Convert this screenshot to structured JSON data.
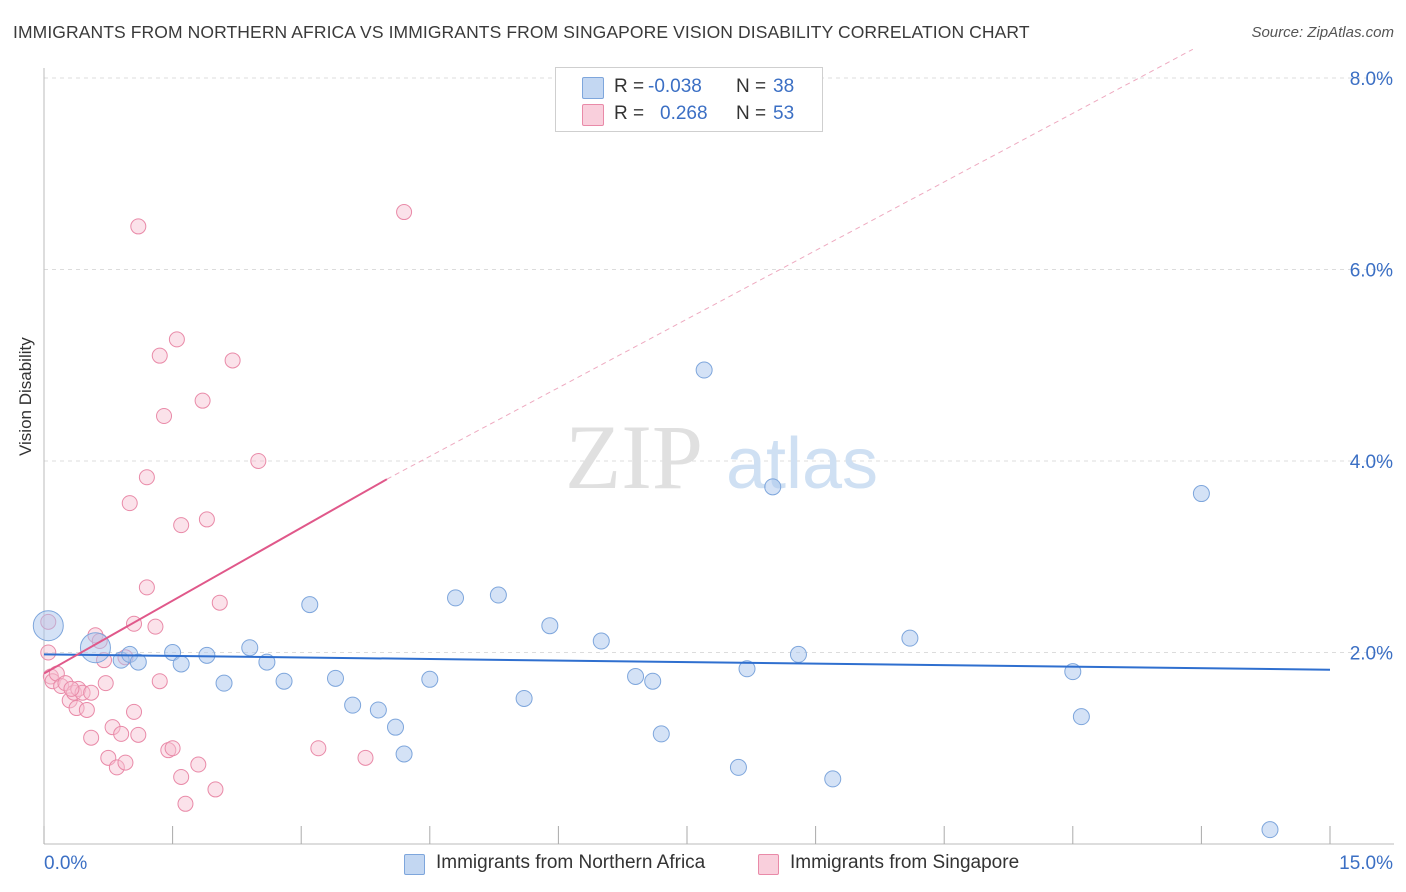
{
  "title": "IMMIGRANTS FROM NORTHERN AFRICA VS IMMIGRANTS FROM SINGAPORE VISION DISABILITY CORRELATION CHART",
  "source": "Source: ZipAtlas.com",
  "watermark": {
    "zip": "ZIP",
    "atlas": "atlas"
  },
  "colors": {
    "blue_fill": "#a9c6ee",
    "blue_stroke": "#7ea6dc",
    "blue_line": "#2f6fcf",
    "pink_fill": "#f6bfd0",
    "pink_stroke": "#e98aa8",
    "pink_line": "#e0588a",
    "axis_text": "#3b6fc4",
    "grid": "#dcdcdc"
  },
  "legend": {
    "rows": [
      {
        "r_label": "R =",
        "r_value": "-0.038",
        "n_label": "N =",
        "n_value": "38"
      },
      {
        "r_label": "R =",
        "r_value": "0.268",
        "n_label": "N =",
        "n_value": "53"
      }
    ]
  },
  "bottom_legend": {
    "series1": "Immigrants from Northern Africa",
    "series2": "Immigrants from Singapore"
  },
  "chart_data": {
    "type": "scatter",
    "title": "IMMIGRANTS FROM NORTHERN AFRICA VS IMMIGRANTS FROM SINGAPORE VISION DISABILITY CORRELATION CHART",
    "xlabel": "",
    "ylabel": "Vision Disability",
    "xlim": [
      0,
      15
    ],
    "ylim": [
      0,
      8.0
    ],
    "x_tick_labels": [
      "0.0%",
      "15.0%"
    ],
    "y_ticks": [
      2,
      4,
      6,
      8
    ],
    "y_tick_labels": [
      "2.0%",
      "4.0%",
      "6.0%",
      "8.0%"
    ],
    "grid": true,
    "series": [
      {
        "name": "Immigrants from Northern Africa",
        "R": -0.038,
        "N": 38,
        "trend": {
          "x0": 0,
          "y0": 1.98,
          "x1": 15,
          "y1": 1.82
        },
        "points": [
          {
            "x": 0.05,
            "y": 2.28,
            "big": true
          },
          {
            "x": 0.6,
            "y": 2.05,
            "big": true
          },
          {
            "x": 0.9,
            "y": 1.92
          },
          {
            "x": 1.0,
            "y": 1.98
          },
          {
            "x": 1.1,
            "y": 1.9
          },
          {
            "x": 1.5,
            "y": 2.0
          },
          {
            "x": 1.6,
            "y": 1.88
          },
          {
            "x": 1.9,
            "y": 1.97
          },
          {
            "x": 2.1,
            "y": 1.68
          },
          {
            "x": 2.4,
            "y": 2.05
          },
          {
            "x": 2.6,
            "y": 1.9
          },
          {
            "x": 2.8,
            "y": 1.7
          },
          {
            "x": 3.1,
            "y": 2.5
          },
          {
            "x": 3.4,
            "y": 1.73
          },
          {
            "x": 3.6,
            "y": 1.45
          },
          {
            "x": 3.9,
            "y": 1.4
          },
          {
            "x": 4.1,
            "y": 1.22
          },
          {
            "x": 4.2,
            "y": 0.94
          },
          {
            "x": 4.5,
            "y": 1.72
          },
          {
            "x": 4.8,
            "y": 2.57
          },
          {
            "x": 5.3,
            "y": 2.6
          },
          {
            "x": 5.6,
            "y": 1.52
          },
          {
            "x": 5.9,
            "y": 2.28
          },
          {
            "x": 6.5,
            "y": 2.12
          },
          {
            "x": 6.9,
            "y": 1.75
          },
          {
            "x": 7.1,
            "y": 1.7
          },
          {
            "x": 7.2,
            "y": 1.15
          },
          {
            "x": 7.7,
            "y": 4.95
          },
          {
            "x": 8.1,
            "y": 0.8
          },
          {
            "x": 8.2,
            "y": 1.83
          },
          {
            "x": 8.5,
            "y": 3.73
          },
          {
            "x": 8.8,
            "y": 1.98
          },
          {
            "x": 9.2,
            "y": 0.68
          },
          {
            "x": 10.1,
            "y": 2.15
          },
          {
            "x": 12.0,
            "y": 1.8
          },
          {
            "x": 12.1,
            "y": 1.33
          },
          {
            "x": 13.5,
            "y": 3.66
          },
          {
            "x": 14.3,
            "y": 0.15
          }
        ]
      },
      {
        "name": "Immigrants from Singapore",
        "R": 0.268,
        "N": 53,
        "trend": {
          "x0": 0,
          "y0": 1.78,
          "x1": 4.0,
          "y1": 3.81
        },
        "trend_dashed": {
          "x0": 4.0,
          "y0": 3.81,
          "x1": 13.4,
          "y1": 8.3
        },
        "points": [
          {
            "x": 0.05,
            "y": 2.32
          },
          {
            "x": 0.05,
            "y": 2.0
          },
          {
            "x": 0.08,
            "y": 1.75
          },
          {
            "x": 0.1,
            "y": 1.7
          },
          {
            "x": 0.15,
            "y": 1.78
          },
          {
            "x": 0.2,
            "y": 1.65
          },
          {
            "x": 0.25,
            "y": 1.68
          },
          {
            "x": 0.3,
            "y": 1.5
          },
          {
            "x": 0.35,
            "y": 1.58
          },
          {
            "x": 0.38,
            "y": 1.42
          },
          {
            "x": 0.4,
            "y": 1.62
          },
          {
            "x": 0.45,
            "y": 1.58
          },
          {
            "x": 0.5,
            "y": 1.4
          },
          {
            "x": 0.55,
            "y": 1.11
          },
          {
            "x": 0.6,
            "y": 2.18
          },
          {
            "x": 0.65,
            "y": 2.12
          },
          {
            "x": 0.7,
            "y": 1.92
          },
          {
            "x": 0.72,
            "y": 1.68
          },
          {
            "x": 0.75,
            "y": 0.9
          },
          {
            "x": 0.8,
            "y": 1.22
          },
          {
            "x": 0.85,
            "y": 0.8
          },
          {
            "x": 0.9,
            "y": 1.15
          },
          {
            "x": 0.95,
            "y": 0.85
          },
          {
            "x": 0.95,
            "y": 1.95
          },
          {
            "x": 1.0,
            "y": 3.56
          },
          {
            "x": 1.05,
            "y": 1.38
          },
          {
            "x": 1.05,
            "y": 2.3
          },
          {
            "x": 1.1,
            "y": 1.14
          },
          {
            "x": 1.2,
            "y": 2.68
          },
          {
            "x": 1.2,
            "y": 3.83
          },
          {
            "x": 1.3,
            "y": 2.27
          },
          {
            "x": 1.35,
            "y": 1.7
          },
          {
            "x": 1.35,
            "y": 5.1
          },
          {
            "x": 1.4,
            "y": 4.47
          },
          {
            "x": 1.45,
            "y": 0.98
          },
          {
            "x": 1.5,
            "y": 1.0
          },
          {
            "x": 1.55,
            "y": 5.27
          },
          {
            "x": 1.6,
            "y": 0.7
          },
          {
            "x": 1.6,
            "y": 3.33
          },
          {
            "x": 1.65,
            "y": 0.42
          },
          {
            "x": 1.8,
            "y": 0.83
          },
          {
            "x": 1.85,
            "y": 4.63
          },
          {
            "x": 1.9,
            "y": 3.39
          },
          {
            "x": 2.0,
            "y": 0.57
          },
          {
            "x": 2.05,
            "y": 2.52
          },
          {
            "x": 2.2,
            "y": 5.05
          },
          {
            "x": 2.5,
            "y": 4.0
          },
          {
            "x": 3.2,
            "y": 1.0
          },
          {
            "x": 3.75,
            "y": 0.9
          },
          {
            "x": 1.1,
            "y": 6.45
          },
          {
            "x": 4.2,
            "y": 6.6
          },
          {
            "x": 0.55,
            "y": 1.58
          },
          {
            "x": 0.32,
            "y": 1.62
          }
        ]
      }
    ]
  }
}
